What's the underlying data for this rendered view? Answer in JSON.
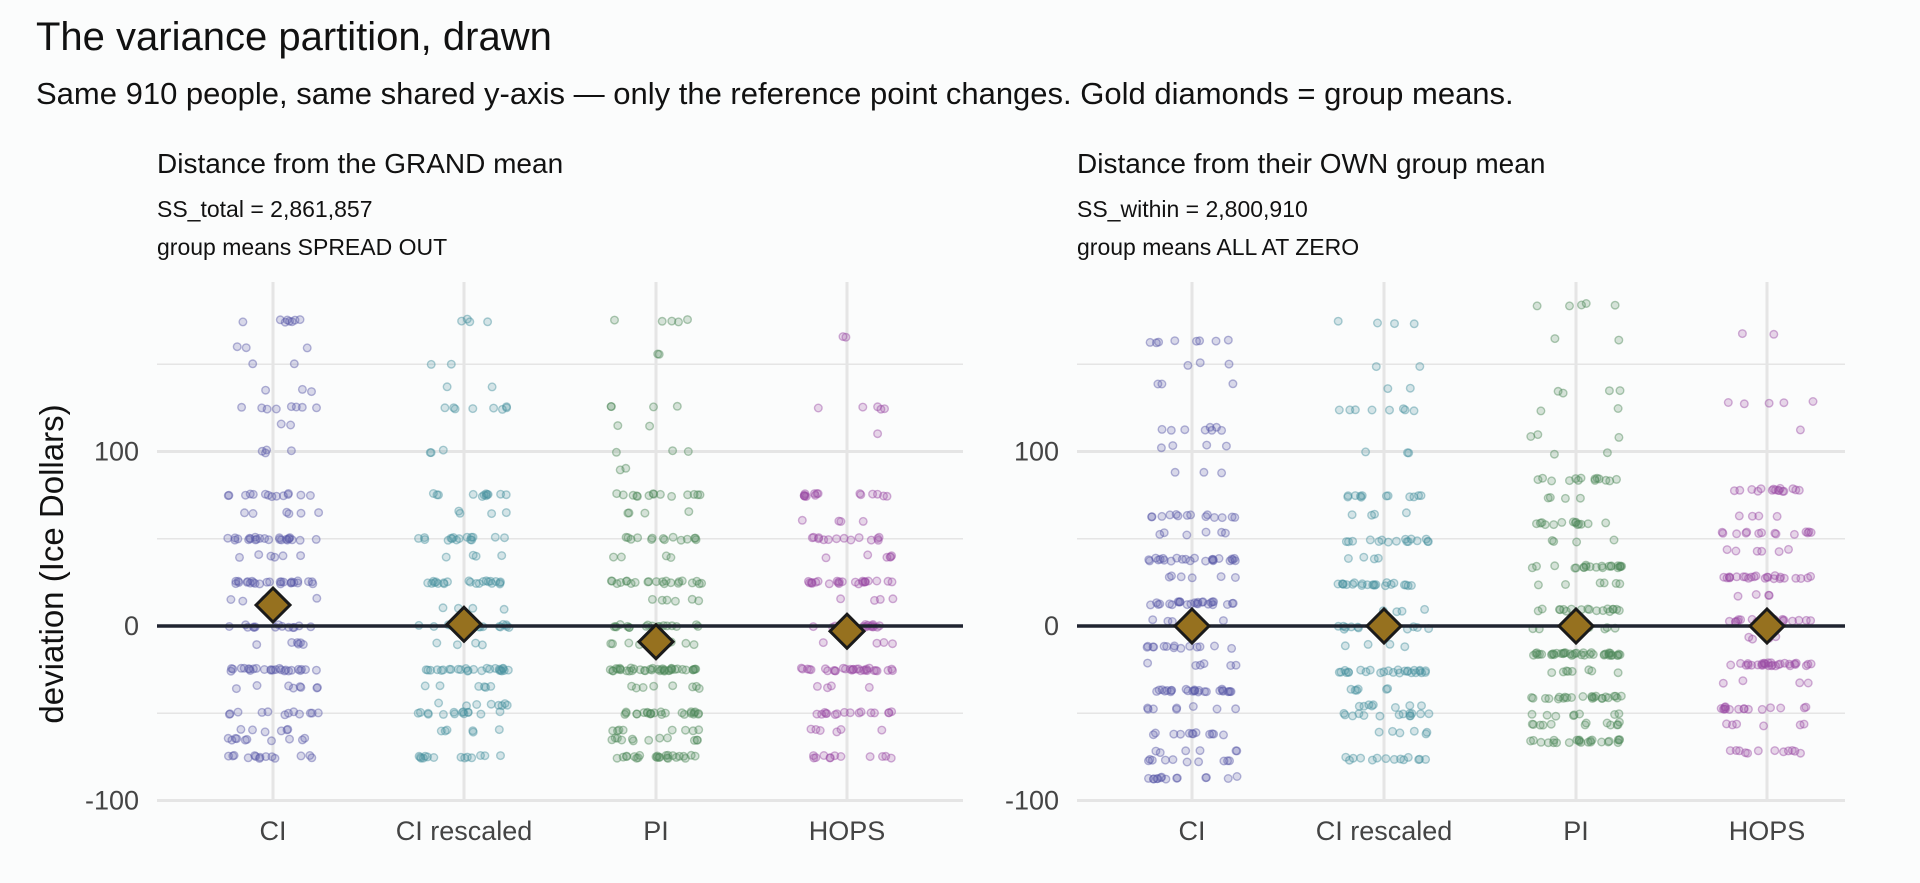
{
  "title": "The variance partition, drawn",
  "subtitle": "Same 910 people, same shared y-axis — only the reference point changes. Gold diamonds = group means.",
  "colors": {
    "CI": "#5b5ba8",
    "CI rescaled": "#4a93a0",
    "PI": "#4f8a5c",
    "HOPS": "#9b4ea6",
    "mean_fill": "#96711f",
    "zero_line": "#1f2430",
    "grid": "#e5e5e5"
  },
  "chart_data": [
    {
      "type": "scatter",
      "title": "Distance from the GRAND mean",
      "notes": [
        "SS_total = 2,861,857",
        "group means SPREAD OUT"
      ],
      "ylabel": "deviation (Ice Dollars)",
      "categories": [
        "CI",
        "CI rescaled",
        "PI",
        "HOPS"
      ],
      "y_ticks": [
        -100,
        0,
        100
      ],
      "ylim": [
        -100,
        190
      ],
      "reference_line": 0,
      "grid": true,
      "group_means": [
        12,
        1,
        -9,
        -3
      ],
      "distributions": [
        {
          "name": "CI",
          "levels": [
            [
              175,
              8
            ],
            [
              160,
              3
            ],
            [
              150,
              2
            ],
            [
              135,
              3
            ],
            [
              125,
              8
            ],
            [
              115,
              2
            ],
            [
              100,
              4
            ],
            [
              75,
              14
            ],
            [
              65,
              6
            ],
            [
              50,
              24
            ],
            [
              40,
              6
            ],
            [
              25,
              26
            ],
            [
              15,
              5
            ],
            [
              0,
              14
            ],
            [
              -10,
              6
            ],
            [
              -25,
              26
            ],
            [
              -35,
              8
            ],
            [
              -50,
              12
            ],
            [
              -60,
              6
            ],
            [
              -65,
              10
            ],
            [
              -75,
              14
            ]
          ]
        },
        {
          "name": "CI rescaled",
          "levels": [
            [
              175,
              4
            ],
            [
              150,
              2
            ],
            [
              137,
              2
            ],
            [
              125,
              8
            ],
            [
              100,
              3
            ],
            [
              75,
              12
            ],
            [
              65,
              4
            ],
            [
              50,
              16
            ],
            [
              40,
              4
            ],
            [
              25,
              22
            ],
            [
              10,
              4
            ],
            [
              0,
              16
            ],
            [
              -10,
              4
            ],
            [
              -25,
              26
            ],
            [
              -35,
              6
            ],
            [
              -45,
              8
            ],
            [
              -50,
              14
            ],
            [
              -60,
              6
            ],
            [
              -75,
              14
            ]
          ]
        },
        {
          "name": "PI",
          "levels": [
            [
              175,
              5
            ],
            [
              155,
              2
            ],
            [
              125,
              4
            ],
            [
              115,
              2
            ],
            [
              100,
              3
            ],
            [
              90,
              2
            ],
            [
              75,
              14
            ],
            [
              65,
              4
            ],
            [
              50,
              14
            ],
            [
              40,
              4
            ],
            [
              25,
              22
            ],
            [
              15,
              6
            ],
            [
              0,
              18
            ],
            [
              -10,
              10
            ],
            [
              -25,
              40
            ],
            [
              -35,
              8
            ],
            [
              -50,
              24
            ],
            [
              -60,
              8
            ],
            [
              -65,
              12
            ],
            [
              -75,
              24
            ]
          ]
        },
        {
          "name": "HOPS",
          "levels": [
            [
              165,
              2
            ],
            [
              125,
              5
            ],
            [
              110,
              1
            ],
            [
              75,
              16
            ],
            [
              60,
              4
            ],
            [
              50,
              14
            ],
            [
              40,
              6
            ],
            [
              25,
              24
            ],
            [
              15,
              4
            ],
            [
              0,
              18
            ],
            [
              -10,
              4
            ],
            [
              -25,
              30
            ],
            [
              -35,
              4
            ],
            [
              -50,
              16
            ],
            [
              -60,
              6
            ],
            [
              -75,
              12
            ]
          ]
        }
      ]
    },
    {
      "type": "scatter",
      "title": "Distance from their OWN group mean",
      "notes": [
        "SS_within = 2,800,910",
        "group means ALL AT ZERO"
      ],
      "ylabel": "",
      "categories": [
        "CI",
        "CI rescaled",
        "PI",
        "HOPS"
      ],
      "y_ticks": [
        -100,
        0,
        100
      ],
      "ylim": [
        -100,
        190
      ],
      "reference_line": 0,
      "grid": true,
      "group_means": [
        0,
        0,
        0,
        0
      ],
      "distributions": [
        {
          "name": "CI",
          "levels": [
            [
              163,
              8
            ],
            [
              150,
              3
            ],
            [
              138,
              3
            ],
            [
              113,
              8
            ],
            [
              103,
              4
            ],
            [
              88,
              3
            ],
            [
              63,
              14
            ],
            [
              53,
              6
            ],
            [
              38,
              24
            ],
            [
              28,
              6
            ],
            [
              13,
              26
            ],
            [
              3,
              5
            ],
            [
              -12,
              14
            ],
            [
              -22,
              6
            ],
            [
              -37,
              26
            ],
            [
              -47,
              8
            ],
            [
              -62,
              12
            ],
            [
              -72,
              6
            ],
            [
              -77,
              10
            ],
            [
              -87,
              14
            ]
          ]
        },
        {
          "name": "CI rescaled",
          "levels": [
            [
              174,
              4
            ],
            [
              149,
              2
            ],
            [
              136,
              2
            ],
            [
              124,
              8
            ],
            [
              99,
              3
            ],
            [
              74,
              12
            ],
            [
              64,
              4
            ],
            [
              49,
              16
            ],
            [
              39,
              4
            ],
            [
              24,
              22
            ],
            [
              9,
              4
            ],
            [
              -1,
              16
            ],
            [
              -11,
              4
            ],
            [
              -26,
              26
            ],
            [
              -36,
              6
            ],
            [
              -46,
              8
            ],
            [
              -51,
              14
            ],
            [
              -61,
              6
            ],
            [
              -76,
              14
            ]
          ]
        },
        {
          "name": "PI",
          "levels": [
            [
              184,
              5
            ],
            [
              164,
              2
            ],
            [
              134,
              4
            ],
            [
              124,
              2
            ],
            [
              109,
              3
            ],
            [
              99,
              2
            ],
            [
              84,
              14
            ],
            [
              74,
              4
            ],
            [
              59,
              14
            ],
            [
              49,
              4
            ],
            [
              34,
              22
            ],
            [
              24,
              6
            ],
            [
              9,
              18
            ],
            [
              -1,
              10
            ],
            [
              -16,
              40
            ],
            [
              -26,
              8
            ],
            [
              -41,
              24
            ],
            [
              -51,
              8
            ],
            [
              -56,
              12
            ],
            [
              -66,
              24
            ]
          ]
        },
        {
          "name": "HOPS",
          "levels": [
            [
              168,
              2
            ],
            [
              128,
              5
            ],
            [
              113,
              1
            ],
            [
              78,
              16
            ],
            [
              63,
              4
            ],
            [
              53,
              14
            ],
            [
              43,
              6
            ],
            [
              28,
              24
            ],
            [
              18,
              4
            ],
            [
              3,
              18
            ],
            [
              -7,
              4
            ],
            [
              -22,
              30
            ],
            [
              -32,
              4
            ],
            [
              -47,
              16
            ],
            [
              -57,
              6
            ],
            [
              -72,
              12
            ]
          ]
        }
      ]
    }
  ]
}
